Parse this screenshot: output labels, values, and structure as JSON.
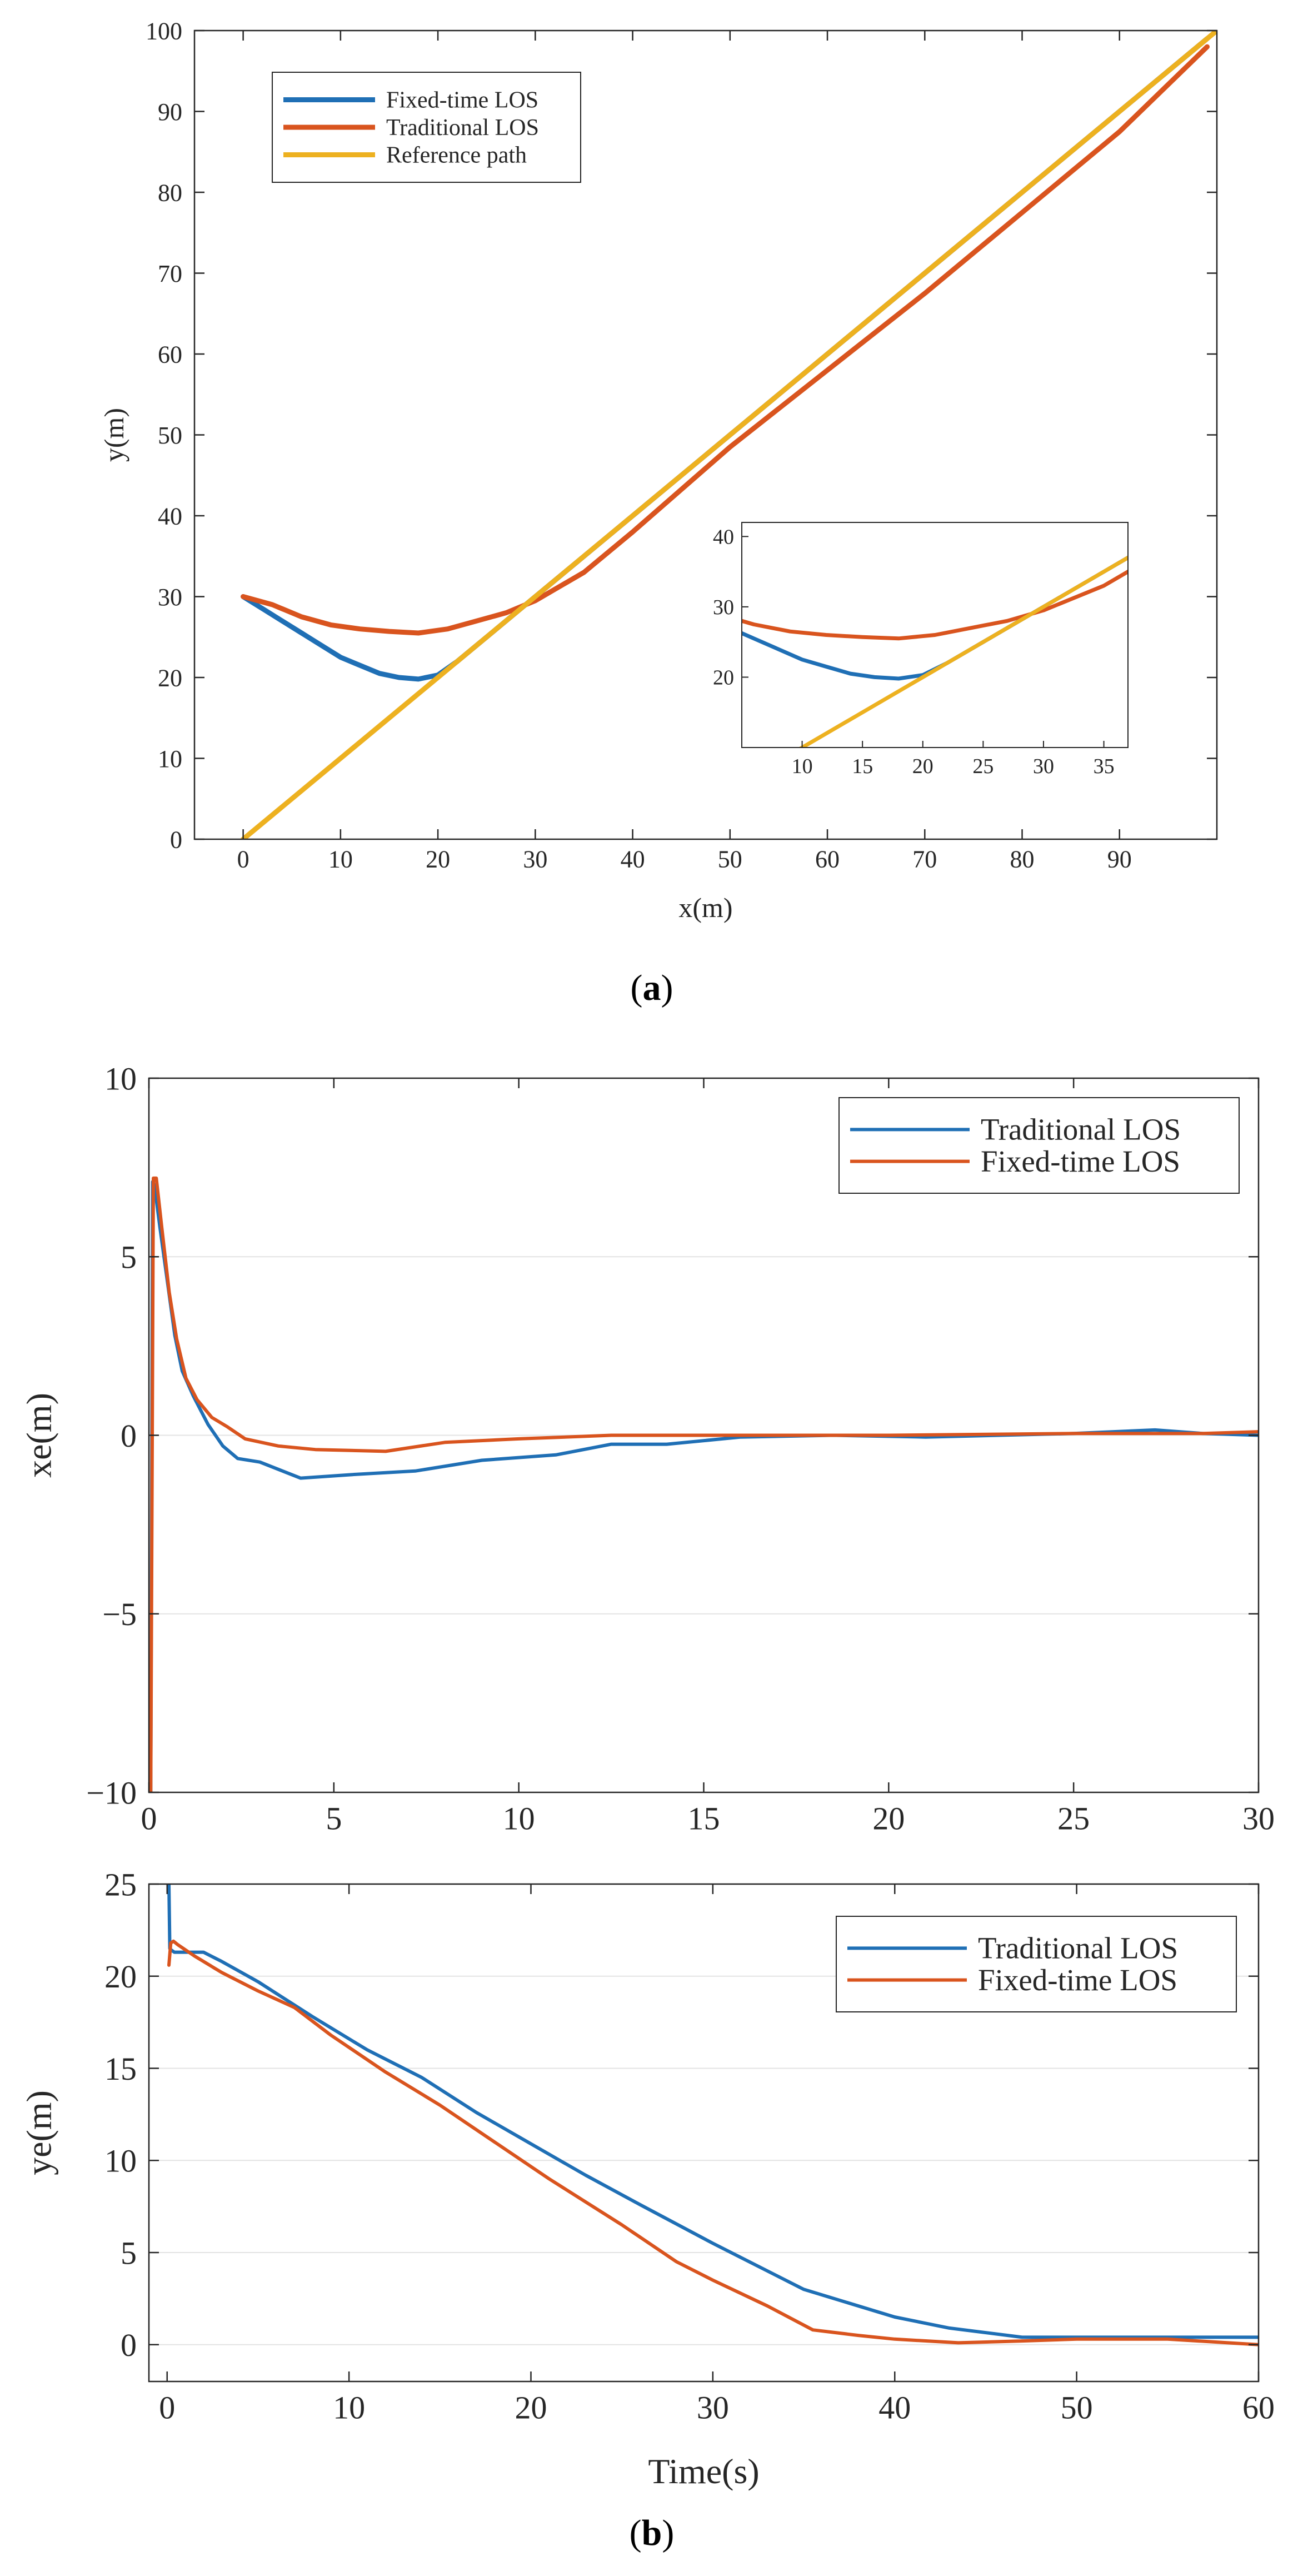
{
  "colors": {
    "blue": "#1f6fb5",
    "orange": "#d9541e",
    "yellow": "#edb120",
    "axis": "#262626",
    "grid": "#e3e3e3",
    "bg": "#ffffff"
  },
  "captions": {
    "a": "a",
    "b": "b"
  },
  "chart_data": [
    {
      "id": "a",
      "type": "line",
      "xlabel": "x(m)",
      "ylabel": "y(m)",
      "xlim": [
        -5,
        100
      ],
      "ylim": [
        0,
        100
      ],
      "xticks": [
        0,
        10,
        20,
        30,
        40,
        50,
        60,
        70,
        80,
        90
      ],
      "yticks": [
        0,
        10,
        20,
        30,
        40,
        50,
        60,
        70,
        80,
        90,
        100
      ],
      "grid": false,
      "legend_position": "top-left",
      "series": [
        {
          "name": "Fixed-time LOS",
          "color": "blue",
          "x": [
            0,
            2,
            4,
            6,
            8,
            10,
            12,
            14,
            16,
            18,
            20,
            22,
            25,
            28,
            35,
            50,
            70,
            99
          ],
          "y": [
            30,
            28.5,
            27,
            25.5,
            24,
            22.5,
            21.5,
            20.5,
            20,
            19.8,
            20.3,
            22,
            25,
            28,
            35,
            50,
            70,
            99
          ]
        },
        {
          "name": "Traditional LOS",
          "color": "orange",
          "x": [
            0,
            3,
            6,
            9,
            12,
            15,
            18,
            21,
            24,
            27,
            30,
            35,
            40,
            50,
            60,
            70,
            80,
            90,
            99
          ],
          "y": [
            30,
            29,
            27.5,
            26.5,
            26,
            25.7,
            25.5,
            26,
            27,
            28,
            29.5,
            33,
            38,
            48.5,
            58,
            67.5,
            77.5,
            87.5,
            98
          ]
        },
        {
          "name": "Reference path",
          "color": "yellow",
          "x": [
            0,
            100
          ],
          "y": [
            0,
            100
          ]
        }
      ],
      "inset": {
        "xlim": [
          5,
          37
        ],
        "ylim": [
          10,
          42
        ],
        "xticks": [
          10,
          15,
          20,
          25,
          30,
          35
        ],
        "yticks": [
          20,
          30,
          40
        ]
      }
    },
    {
      "id": "b-top",
      "type": "line",
      "ylabel": "xe(m)",
      "xlim": [
        0,
        30
      ],
      "ylim": [
        -10,
        10
      ],
      "xticks": [
        0,
        5,
        10,
        15,
        20,
        25,
        30
      ],
      "yticks": [
        -10,
        -5,
        0,
        5,
        10
      ],
      "grid": true,
      "legend_position": "top-right",
      "series": [
        {
          "name": "Traditional LOS",
          "color": "blue",
          "x": [
            0.05,
            0.1,
            0.15,
            0.3,
            0.5,
            0.7,
            0.9,
            1.2,
            1.6,
            2.0,
            2.4,
            3.0,
            4.1,
            5.5,
            7.2,
            9.0,
            11.0,
            12.5,
            14.0,
            16.0,
            18.5,
            21.0,
            25.0,
            27.2,
            28.5,
            30
          ],
          "y": [
            -10,
            7.1,
            7.0,
            5.8,
            4.3,
            2.8,
            1.8,
            1.1,
            0.3,
            -0.3,
            -0.65,
            -0.75,
            -1.2,
            -1.1,
            -1.0,
            -0.7,
            -0.55,
            -0.25,
            -0.25,
            -0.05,
            0.0,
            -0.05,
            0.05,
            0.15,
            0.05,
            0.0
          ]
        },
        {
          "name": "Fixed-time LOS",
          "color": "orange",
          "x": [
            0.05,
            0.12,
            0.2,
            0.35,
            0.55,
            0.75,
            1.0,
            1.3,
            1.7,
            2.1,
            2.6,
            3.5,
            4.5,
            6.4,
            8.0,
            10.0,
            12.5,
            15.0,
            20.0,
            25.0,
            28.5,
            30
          ],
          "y": [
            -10,
            7.2,
            7.2,
            5.8,
            4.0,
            2.7,
            1.6,
            1.0,
            0.5,
            0.25,
            -0.1,
            -0.3,
            -0.4,
            -0.45,
            -0.2,
            -0.1,
            0.0,
            0.0,
            0.0,
            0.05,
            0.05,
            0.1
          ]
        }
      ]
    },
    {
      "id": "b-bottom",
      "type": "line",
      "xlabel": "Time(s)",
      "ylabel": "ye(m)",
      "xlim": [
        -1,
        60
      ],
      "ylim": [
        -2,
        25
      ],
      "xticks": [
        0,
        10,
        20,
        30,
        40,
        50,
        60
      ],
      "yticks": [
        0,
        5,
        10,
        15,
        20,
        25
      ],
      "grid": true,
      "legend_position": "top-right",
      "series": [
        {
          "name": "Traditional LOS",
          "color": "blue",
          "x": [
            0.1,
            0.15,
            0.25,
            0.4,
            1.0,
            2.0,
            3.0,
            5.0,
            8.0,
            11.0,
            14.0,
            17.0,
            20.0,
            23.0,
            26.0,
            30.0,
            35.0,
            40.0,
            43.0,
            47.0,
            50.0,
            55.0,
            60.0
          ],
          "y": [
            25,
            21.5,
            21.4,
            21.3,
            21.3,
            21.3,
            20.8,
            19.7,
            17.8,
            16.0,
            14.5,
            12.6,
            10.9,
            9.2,
            7.6,
            5.5,
            3.0,
            1.5,
            0.9,
            0.4,
            0.4,
            0.4,
            0.4
          ]
        },
        {
          "name": "Fixed-time LOS",
          "color": "orange",
          "x": [
            0.1,
            0.2,
            0.35,
            0.6,
            1.5,
            3.0,
            5.0,
            7.0,
            9.0,
            12.0,
            15.0,
            18.0,
            21.0,
            25.0,
            28.0,
            30.0,
            33.0,
            35.5,
            38.0,
            40.0,
            43.5,
            47.0,
            50.0,
            55.0,
            60.0
          ],
          "y": [
            20.6,
            21.8,
            21.9,
            21.7,
            21.1,
            20.2,
            19.2,
            18.3,
            16.8,
            14.8,
            13.0,
            11.0,
            9.0,
            6.5,
            4.5,
            3.5,
            2.1,
            0.8,
            0.5,
            0.3,
            0.1,
            0.2,
            0.3,
            0.3,
            0.0
          ]
        }
      ]
    }
  ]
}
